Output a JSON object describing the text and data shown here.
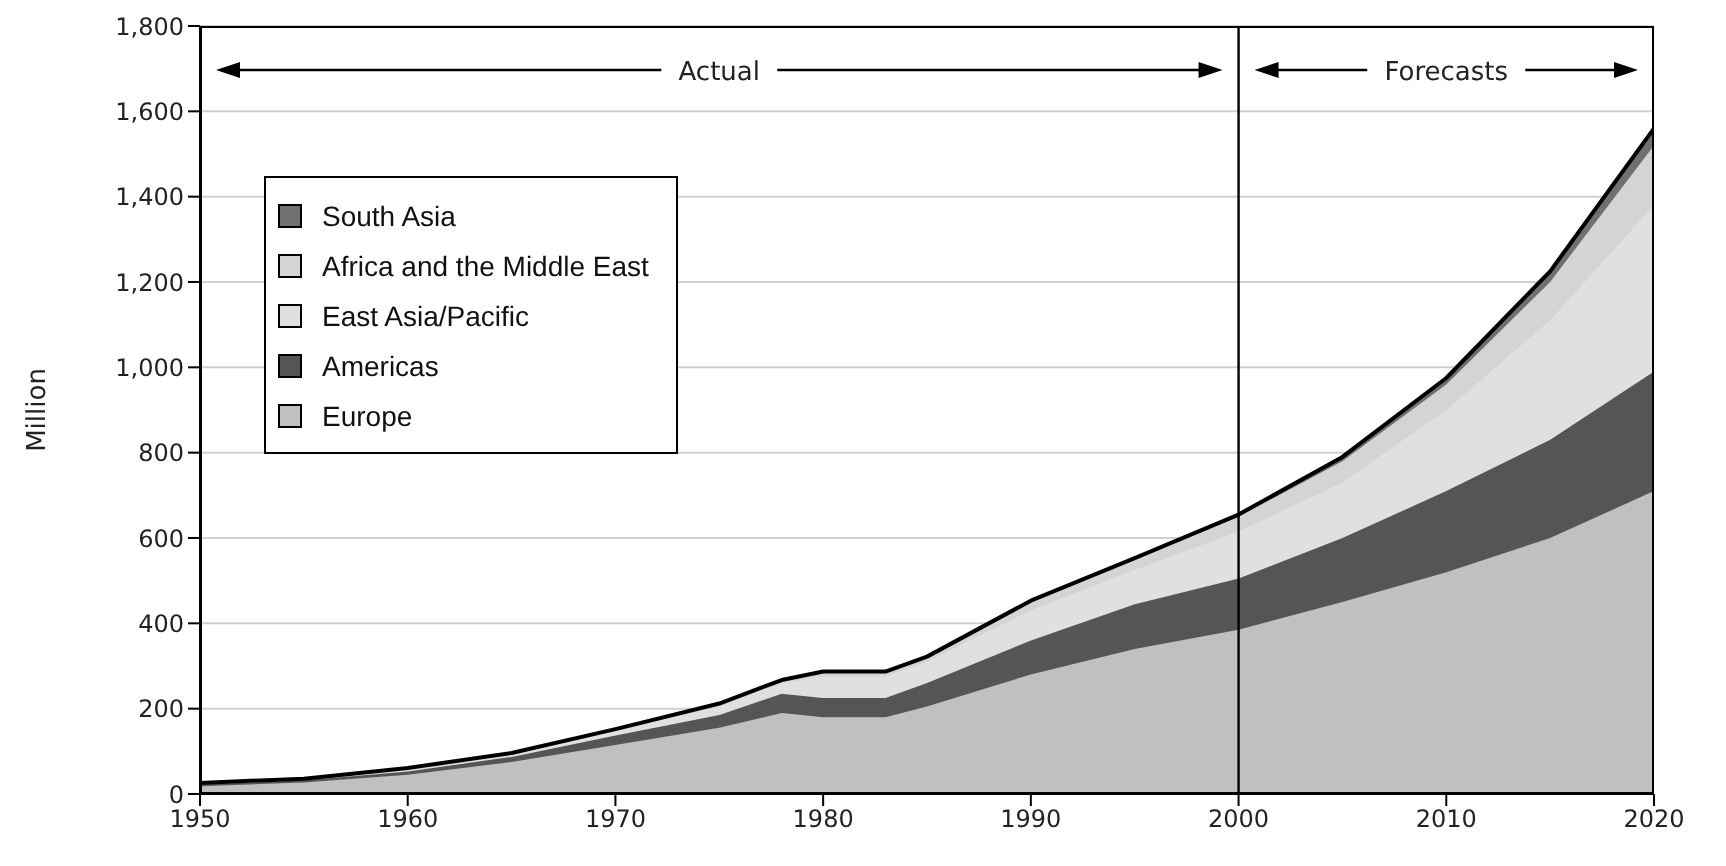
{
  "chart_data": {
    "type": "area",
    "stacked": true,
    "ylabel": "Million",
    "x": [
      1950,
      1955,
      1960,
      1965,
      1970,
      1975,
      1978,
      1980,
      1983,
      1985,
      1990,
      1995,
      2000,
      2005,
      2010,
      2015,
      2020
    ],
    "series": [
      {
        "name": "Europe",
        "color": "#c0c0c0",
        "values": [
          18,
          27,
          45,
          75,
          115,
          155,
          190,
          180,
          180,
          205,
          280,
          340,
          385,
          450,
          520,
          600,
          710
        ]
      },
      {
        "name": "Americas",
        "color": "#555555",
        "values": [
          4,
          5,
          8,
          12,
          22,
          30,
          45,
          45,
          45,
          55,
          80,
          105,
          120,
          150,
          190,
          230,
          280
        ]
      },
      {
        "name": "East Asia/Pacific",
        "color": "#e0e0e0",
        "values": [
          2,
          2,
          5,
          6,
          10,
          20,
          25,
          50,
          50,
          50,
          70,
          80,
          110,
          130,
          190,
          280,
          390
        ]
      },
      {
        "name": "Africa and the Middle East",
        "color": "#d4d4d4",
        "values": [
          1,
          1,
          2,
          2,
          3,
          5,
          5,
          10,
          10,
          10,
          20,
          25,
          35,
          50,
          60,
          90,
          140
        ]
      },
      {
        "name": "South Asia",
        "color": "#707070",
        "values": [
          1,
          1,
          1,
          1,
          2,
          2,
          2,
          2,
          2,
          2,
          3,
          3,
          5,
          10,
          15,
          25,
          40
        ]
      }
    ],
    "xlim": [
      1950,
      2020
    ],
    "xticks": [
      1950,
      1960,
      1970,
      1980,
      1990,
      2000,
      2010,
      2020
    ],
    "ylim": [
      0,
      1800
    ],
    "yticks": [
      0,
      200,
      400,
      600,
      800,
      {
        "value": 1000,
        "label": "1,000"
      },
      {
        "value": 1200,
        "label": "1,200"
      },
      {
        "value": 1400,
        "label": "1,400"
      },
      {
        "value": 1600,
        "label": "1,600"
      },
      {
        "value": 1800,
        "label": "1,800"
      }
    ],
    "grid": "y",
    "legend": "top left",
    "ref_lines": [
      {
        "axis": "x",
        "value": 2000,
        "color": "#000000"
      }
    ],
    "annotations": [
      "Actual",
      "Forecasts"
    ]
  }
}
